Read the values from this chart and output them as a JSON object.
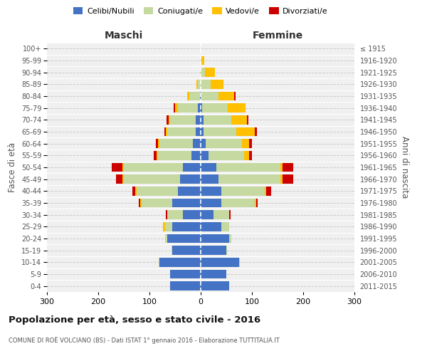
{
  "age_groups": [
    "0-4",
    "5-9",
    "10-14",
    "15-19",
    "20-24",
    "25-29",
    "30-34",
    "35-39",
    "40-44",
    "45-49",
    "50-54",
    "55-59",
    "60-64",
    "65-69",
    "70-74",
    "75-79",
    "80-84",
    "85-89",
    "90-94",
    "95-99",
    "100+"
  ],
  "birth_years": [
    "2011-2015",
    "2006-2010",
    "2001-2005",
    "1996-2000",
    "1991-1995",
    "1986-1990",
    "1981-1985",
    "1976-1980",
    "1971-1975",
    "1966-1970",
    "1961-1965",
    "1956-1960",
    "1951-1955",
    "1946-1950",
    "1941-1945",
    "1936-1940",
    "1931-1935",
    "1926-1930",
    "1921-1925",
    "1916-1920",
    "≤ 1915"
  ],
  "maschi": {
    "celibi": [
      60,
      60,
      80,
      55,
      65,
      55,
      35,
      55,
      45,
      40,
      35,
      18,
      15,
      10,
      10,
      5,
      2,
      0,
      0,
      0,
      0
    ],
    "coniugati": [
      0,
      0,
      2,
      2,
      5,
      15,
      30,
      60,
      80,
      110,
      115,
      65,
      65,
      55,
      50,
      40,
      20,
      5,
      2,
      0,
      0
    ],
    "vedovi": [
      0,
      0,
      0,
      0,
      0,
      3,
      0,
      3,
      3,
      3,
      3,
      3,
      3,
      3,
      3,
      5,
      5,
      3,
      0,
      0,
      0
    ],
    "divorziati": [
      0,
      0,
      0,
      0,
      0,
      0,
      3,
      3,
      5,
      12,
      20,
      5,
      5,
      3,
      3,
      3,
      0,
      0,
      0,
      0,
      0
    ]
  },
  "femmine": {
    "nubili": [
      55,
      50,
      75,
      50,
      55,
      40,
      25,
      40,
      40,
      35,
      30,
      15,
      10,
      5,
      5,
      3,
      0,
      0,
      0,
      0,
      0
    ],
    "coniugate": [
      0,
      0,
      2,
      2,
      5,
      15,
      30,
      65,
      85,
      120,
      125,
      70,
      70,
      65,
      55,
      50,
      35,
      20,
      8,
      2,
      0
    ],
    "vedove": [
      0,
      0,
      0,
      0,
      0,
      0,
      0,
      3,
      3,
      5,
      5,
      10,
      15,
      35,
      30,
      35,
      30,
      25,
      20,
      5,
      0
    ],
    "divorziate": [
      0,
      0,
      0,
      0,
      0,
      0,
      3,
      3,
      10,
      20,
      20,
      5,
      5,
      5,
      3,
      0,
      3,
      0,
      0,
      0,
      0
    ]
  },
  "colors": {
    "celibi": "#4472c4",
    "coniugati": "#c5d9a0",
    "vedovi": "#ffc000",
    "divorziati": "#cc0000"
  },
  "xlim": 300,
  "title": "Popolazione per età, sesso e stato civile - 2016",
  "subtitle": "COMUNE DI ROÈ VOLCIANO (BS) - Dati ISTAT 1° gennaio 2016 - Elaborazione TUTTITALIA.IT",
  "ylabel_left": "Fasce di età",
  "ylabel_right": "Anni di nascita",
  "xlabel_maschi": "Maschi",
  "xlabel_femmine": "Femmine",
  "bg_color": "#f0f0f0",
  "grid_color": "#cccccc"
}
